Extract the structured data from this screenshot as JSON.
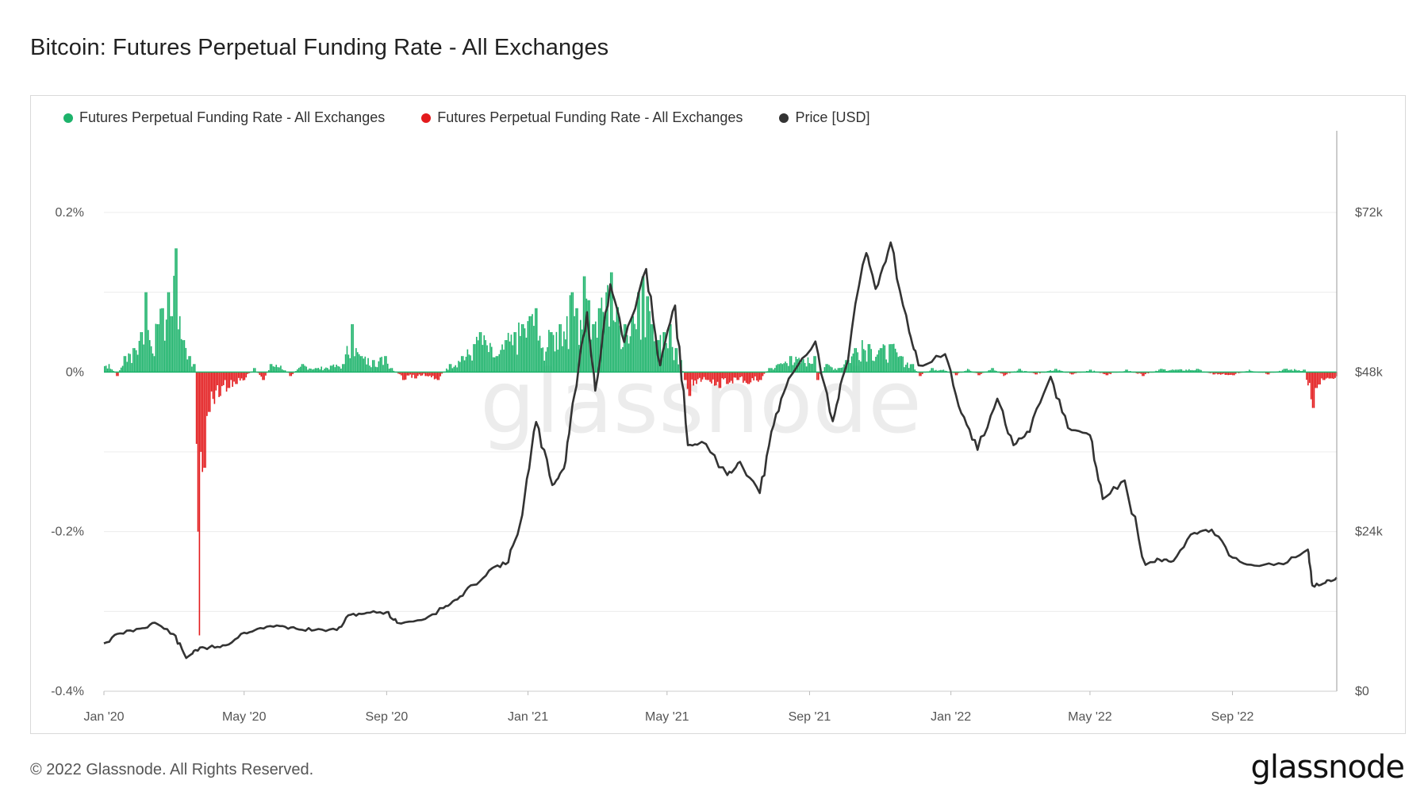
{
  "title": "Bitcoin: Futures Perpetual Funding Rate - All Exchanges",
  "legend": [
    {
      "label": "Futures Perpetual Funding Rate - All Exchanges",
      "color": "#1db36b"
    },
    {
      "label": "Futures Perpetual Funding Rate - All Exchanges",
      "color": "#e31a1c"
    },
    {
      "label": "Price [USD]",
      "color": "#333333"
    }
  ],
  "watermark": "glassnode",
  "footer": {
    "copyright": "© 2022 Glassnode. All Rights Reserved.",
    "logo": "glassnode"
  },
  "chart_data": {
    "type": "bar+line",
    "x_type": "date",
    "x_range": [
      "2020-01-01",
      "2022-11-30"
    ],
    "x_ticks": [
      {
        "date": "2020-01-01",
        "label": "Jan '20"
      },
      {
        "date": "2020-05-01",
        "label": "May '20"
      },
      {
        "date": "2020-09-01",
        "label": "Sep '20"
      },
      {
        "date": "2021-01-01",
        "label": "Jan '21"
      },
      {
        "date": "2021-05-01",
        "label": "May '21"
      },
      {
        "date": "2021-09-01",
        "label": "Sep '21"
      },
      {
        "date": "2022-01-01",
        "label": "Jan '22"
      },
      {
        "date": "2022-05-01",
        "label": "May '22"
      },
      {
        "date": "2022-09-01",
        "label": "Sep '22"
      }
    ],
    "y_left": {
      "min": -0.4,
      "max": 0.2,
      "ticks": [
        {
          "v": 0.2,
          "label": "0.2%"
        },
        {
          "v": 0,
          "label": "0%"
        },
        {
          "v": -0.2,
          "label": "-0.2%"
        },
        {
          "v": -0.4,
          "label": "-0.4%"
        }
      ]
    },
    "y_right": {
      "min": 0,
      "max": 72000,
      "ticks": [
        {
          "v": 72000,
          "label": "$72k"
        },
        {
          "v": 48000,
          "label": "$48k"
        },
        {
          "v": 24000,
          "label": "$24k"
        },
        {
          "v": 0,
          "label": "$0"
        }
      ]
    },
    "grid": true,
    "colors": {
      "positive": "#1db36b",
      "negative": "#e31a1c",
      "price": "#333333"
    },
    "funding_rate_pct": [
      [
        "2020-01-05",
        0.01
      ],
      [
        "2020-01-12",
        -0.005
      ],
      [
        "2020-01-19",
        0.02
      ],
      [
        "2020-01-26",
        0.03
      ],
      [
        "2020-02-02",
        0.05
      ],
      [
        "2020-02-06",
        0.1
      ],
      [
        "2020-02-09",
        0.04
      ],
      [
        "2020-02-16",
        0.06
      ],
      [
        "2020-02-20",
        0.08
      ],
      [
        "2020-02-25",
        0.1
      ],
      [
        "2020-02-28",
        0.07
      ],
      [
        "2020-03-03",
        0.155
      ],
      [
        "2020-03-06",
        0.07
      ],
      [
        "2020-03-10",
        0.04
      ],
      [
        "2020-03-14",
        0.02
      ],
      [
        "2020-03-18",
        0.01
      ],
      [
        "2020-03-21",
        -0.09
      ],
      [
        "2020-03-22",
        -0.2
      ],
      [
        "2020-03-23",
        -0.33
      ],
      [
        "2020-03-24",
        -0.1
      ],
      [
        "2020-03-27",
        -0.12
      ],
      [
        "2020-03-31",
        -0.05
      ],
      [
        "2020-04-05",
        -0.04
      ],
      [
        "2020-04-10",
        -0.03
      ],
      [
        "2020-04-17",
        -0.02
      ],
      [
        "2020-04-24",
        -0.015
      ],
      [
        "2020-05-01",
        -0.01
      ],
      [
        "2020-05-09",
        0.005
      ],
      [
        "2020-05-17",
        -0.01
      ],
      [
        "2020-05-24",
        0.01
      ],
      [
        "2020-06-01",
        0.008
      ],
      [
        "2020-06-10",
        -0.005
      ],
      [
        "2020-06-20",
        0.01
      ],
      [
        "2020-07-01",
        0.005
      ],
      [
        "2020-07-15",
        0.008
      ],
      [
        "2020-07-25",
        0.01
      ],
      [
        "2020-08-02",
        0.06
      ],
      [
        "2020-08-05",
        0.03
      ],
      [
        "2020-08-10",
        0.02
      ],
      [
        "2020-08-20",
        0.015
      ],
      [
        "2020-08-30",
        0.02
      ],
      [
        "2020-09-05",
        0.005
      ],
      [
        "2020-09-15",
        -0.01
      ],
      [
        "2020-09-25",
        -0.008
      ],
      [
        "2020-10-05",
        -0.005
      ],
      [
        "2020-10-15",
        -0.01
      ],
      [
        "2020-10-25",
        0.01
      ],
      [
        "2020-11-05",
        0.02
      ],
      [
        "2020-11-15",
        0.035
      ],
      [
        "2020-11-20",
        0.05
      ],
      [
        "2020-11-25",
        0.04
      ],
      [
        "2020-12-05",
        0.02
      ],
      [
        "2020-12-12",
        0.04
      ],
      [
        "2020-12-20",
        0.05
      ],
      [
        "2020-12-27",
        0.06
      ],
      [
        "2021-01-02",
        0.07
      ],
      [
        "2021-01-07",
        0.08
      ],
      [
        "2021-01-12",
        0.03
      ],
      [
        "2021-01-20",
        0.05
      ],
      [
        "2021-01-28",
        0.06
      ],
      [
        "2021-02-03",
        0.07
      ],
      [
        "2021-02-08",
        0.1
      ],
      [
        "2021-02-12",
        0.08
      ],
      [
        "2021-02-18",
        0.12
      ],
      [
        "2021-02-22",
        0.09
      ],
      [
        "2021-02-26",
        0.06
      ],
      [
        "2021-03-03",
        0.08
      ],
      [
        "2021-03-09",
        0.1
      ],
      [
        "2021-03-13",
        0.125
      ],
      [
        "2021-03-18",
        0.08
      ],
      [
        "2021-03-25",
        0.06
      ],
      [
        "2021-04-01",
        0.07
      ],
      [
        "2021-04-06",
        0.1
      ],
      [
        "2021-04-10",
        0.12
      ],
      [
        "2021-04-14",
        0.095
      ],
      [
        "2021-04-18",
        0.06
      ],
      [
        "2021-04-23",
        0.04
      ],
      [
        "2021-04-28",
        0.05
      ],
      [
        "2021-05-03",
        0.06
      ],
      [
        "2021-05-08",
        0.03
      ],
      [
        "2021-05-12",
        0.015
      ],
      [
        "2021-05-16",
        -0.01
      ],
      [
        "2021-05-20",
        -0.03
      ],
      [
        "2021-05-26",
        -0.015
      ],
      [
        "2021-06-05",
        -0.01
      ],
      [
        "2021-06-15",
        -0.02
      ],
      [
        "2021-06-22",
        -0.015
      ],
      [
        "2021-07-01",
        -0.01
      ],
      [
        "2021-07-10",
        -0.015
      ],
      [
        "2021-07-20",
        -0.01
      ],
      [
        "2021-07-28",
        0.005
      ],
      [
        "2021-08-05",
        0.01
      ],
      [
        "2021-08-15",
        0.02
      ],
      [
        "2021-08-25",
        0.015
      ],
      [
        "2021-09-05",
        0.02
      ],
      [
        "2021-09-08",
        -0.01
      ],
      [
        "2021-09-15",
        0.01
      ],
      [
        "2021-09-25",
        0.005
      ],
      [
        "2021-10-02",
        0.015
      ],
      [
        "2021-10-10",
        0.03
      ],
      [
        "2021-10-16",
        0.04
      ],
      [
        "2021-10-22",
        0.035
      ],
      [
        "2021-11-01",
        0.03
      ],
      [
        "2021-11-10",
        0.035
      ],
      [
        "2021-11-18",
        0.02
      ],
      [
        "2021-11-28",
        0.01
      ],
      [
        "2021-12-05",
        -0.005
      ],
      [
        "2021-12-15",
        0.005
      ],
      [
        "2021-12-25",
        0.003
      ],
      [
        "2022-01-05",
        -0.004
      ],
      [
        "2022-01-15",
        0.004
      ],
      [
        "2022-01-25",
        -0.004
      ],
      [
        "2022-02-05",
        0.005
      ],
      [
        "2022-02-15",
        -0.005
      ],
      [
        "2022-03-01",
        0.004
      ],
      [
        "2022-03-15",
        -0.003
      ],
      [
        "2022-04-01",
        0.004
      ],
      [
        "2022-04-15",
        -0.003
      ],
      [
        "2022-05-01",
        0.003
      ],
      [
        "2022-05-15",
        -0.004
      ],
      [
        "2022-06-01",
        0.003
      ],
      [
        "2022-06-15",
        -0.005
      ],
      [
        "2022-07-01",
        0.004
      ],
      [
        "2022-07-15",
        0.003
      ],
      [
        "2022-08-01",
        0.004
      ],
      [
        "2022-08-15",
        -0.003
      ],
      [
        "2022-09-01",
        -0.004
      ],
      [
        "2022-09-15",
        0.003
      ],
      [
        "2022-10-01",
        -0.003
      ],
      [
        "2022-10-15",
        0.004
      ],
      [
        "2022-11-01",
        0.003
      ],
      [
        "2022-11-09",
        -0.045
      ],
      [
        "2022-11-12",
        -0.02
      ],
      [
        "2022-11-18",
        -0.01
      ],
      [
        "2022-11-25",
        -0.008
      ]
    ],
    "price_usd": [
      [
        "2020-01-01",
        7200
      ],
      [
        "2020-01-15",
        8700
      ],
      [
        "2020-02-01",
        9400
      ],
      [
        "2020-02-14",
        10300
      ],
      [
        "2020-03-01",
        8600
      ],
      [
        "2020-03-12",
        5000
      ],
      [
        "2020-03-20",
        6200
      ],
      [
        "2020-04-01",
        6600
      ],
      [
        "2020-04-15",
        6900
      ],
      [
        "2020-05-01",
        8800
      ],
      [
        "2020-05-15",
        9500
      ],
      [
        "2020-06-01",
        9800
      ],
      [
        "2020-06-15",
        9400
      ],
      [
        "2020-07-01",
        9200
      ],
      [
        "2020-07-20",
        9200
      ],
      [
        "2020-08-01",
        11500
      ],
      [
        "2020-08-15",
        11800
      ],
      [
        "2020-09-01",
        11900
      ],
      [
        "2020-09-10",
        10300
      ],
      [
        "2020-10-01",
        10700
      ],
      [
        "2020-10-20",
        12500
      ],
      [
        "2020-11-01",
        13800
      ],
      [
        "2020-11-15",
        16000
      ],
      [
        "2020-12-01",
        18500
      ],
      [
        "2020-12-15",
        19400
      ],
      [
        "2020-12-27",
        26500
      ],
      [
        "2021-01-08",
        40500
      ],
      [
        "2021-01-22",
        31000
      ],
      [
        "2021-02-01",
        33500
      ],
      [
        "2021-02-10",
        44500
      ],
      [
        "2021-02-21",
        57000
      ],
      [
        "2021-02-28",
        45200
      ],
      [
        "2021-03-13",
        61200
      ],
      [
        "2021-03-25",
        52500
      ],
      [
        "2021-04-13",
        63500
      ],
      [
        "2021-04-25",
        49000
      ],
      [
        "2021-05-08",
        58000
      ],
      [
        "2021-05-19",
        37000
      ],
      [
        "2021-05-31",
        37500
      ],
      [
        "2021-06-22",
        32500
      ],
      [
        "2021-07-03",
        34500
      ],
      [
        "2021-07-20",
        29800
      ],
      [
        "2021-08-01",
        40000
      ],
      [
        "2021-08-14",
        47000
      ],
      [
        "2021-09-06",
        52600
      ],
      [
        "2021-09-21",
        40600
      ],
      [
        "2021-10-01",
        48000
      ],
      [
        "2021-10-20",
        65900
      ],
      [
        "2021-10-28",
        60500
      ],
      [
        "2021-11-10",
        67500
      ],
      [
        "2021-11-26",
        54000
      ],
      [
        "2021-12-04",
        49000
      ],
      [
        "2021-12-27",
        50700
      ],
      [
        "2022-01-10",
        41800
      ],
      [
        "2022-01-24",
        36300
      ],
      [
        "2022-02-10",
        44000
      ],
      [
        "2022-02-24",
        37000
      ],
      [
        "2022-03-10",
        39000
      ],
      [
        "2022-03-28",
        47300
      ],
      [
        "2022-04-12",
        39600
      ],
      [
        "2022-05-01",
        38500
      ],
      [
        "2022-05-12",
        28900
      ],
      [
        "2022-05-31",
        31700
      ],
      [
        "2022-06-18",
        19000
      ],
      [
        "2022-06-30",
        19800
      ],
      [
        "2022-07-12",
        19600
      ],
      [
        "2022-07-30",
        23800
      ],
      [
        "2022-08-14",
        24300
      ],
      [
        "2022-09-01",
        20100
      ],
      [
        "2022-09-20",
        18900
      ],
      [
        "2022-10-15",
        19100
      ],
      [
        "2022-11-05",
        21300
      ],
      [
        "2022-11-09",
        15900
      ],
      [
        "2022-11-20",
        16300
      ],
      [
        "2022-11-30",
        17100
      ]
    ]
  }
}
